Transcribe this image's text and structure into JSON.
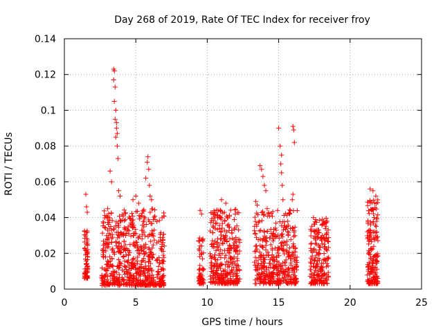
{
  "chart_data": {
    "type": "scatter",
    "title": "Day 268 of 2019, Rate Of TEC Index for receiver froy",
    "xlabel": "GPS time / hours",
    "ylabel": "ROTI / TECUs",
    "xlim": [
      0,
      25
    ],
    "ylim": [
      0,
      0.14
    ],
    "grid": true,
    "marker": "+",
    "colors": {
      "points": "#ff0000",
      "grid": "#a0a0a0",
      "axes": "#000000"
    },
    "x_ticks": [
      {
        "value": 0,
        "label": "0"
      },
      {
        "value": 5,
        "label": "5"
      },
      {
        "value": 10,
        "label": "10"
      },
      {
        "value": 15,
        "label": "15"
      },
      {
        "value": 20,
        "label": "20"
      },
      {
        "value": 25,
        "label": "25"
      }
    ],
    "y_ticks": [
      {
        "value": 0,
        "label": "0"
      },
      {
        "value": 0.02,
        "label": "0.02"
      },
      {
        "value": 0.04,
        "label": "0.04"
      },
      {
        "value": 0.06,
        "label": "0.06"
      },
      {
        "value": 0.08,
        "label": "0.08"
      },
      {
        "value": 0.1,
        "label": "0.1"
      },
      {
        "value": 0.12,
        "label": "0.12"
      },
      {
        "value": 0.14,
        "label": "0.14"
      }
    ],
    "clusters": [
      {
        "x_start": 1.4,
        "x_end": 1.65,
        "y_min": 0.006,
        "y_max": 0.033,
        "count": 70
      },
      {
        "x_start": 2.6,
        "x_end": 7.0,
        "y_min": 0.002,
        "y_max": 0.045,
        "count": 650
      },
      {
        "x_start": 9.4,
        "x_end": 9.75,
        "y_min": 0.003,
        "y_max": 0.03,
        "count": 60
      },
      {
        "x_start": 10.2,
        "x_end": 12.3,
        "y_min": 0.003,
        "y_max": 0.045,
        "count": 330
      },
      {
        "x_start": 13.3,
        "x_end": 16.3,
        "y_min": 0.003,
        "y_max": 0.045,
        "count": 420
      },
      {
        "x_start": 17.2,
        "x_end": 18.5,
        "y_min": 0.003,
        "y_max": 0.04,
        "count": 210
      },
      {
        "x_start": 21.2,
        "x_end": 21.95,
        "y_min": 0.003,
        "y_max": 0.05,
        "count": 170
      }
    ],
    "outliers": [
      {
        "x": 1.5,
        "y": 0.053
      },
      {
        "x": 1.55,
        "y": 0.046
      },
      {
        "x": 1.6,
        "y": 0.043
      },
      {
        "x": 3.2,
        "y": 0.066
      },
      {
        "x": 3.3,
        "y": 0.06
      },
      {
        "x": 3.45,
        "y": 0.123
      },
      {
        "x": 3.45,
        "y": 0.117
      },
      {
        "x": 3.5,
        "y": 0.122
      },
      {
        "x": 3.55,
        "y": 0.113
      },
      {
        "x": 3.5,
        "y": 0.105
      },
      {
        "x": 3.6,
        "y": 0.1
      },
      {
        "x": 3.55,
        "y": 0.095
      },
      {
        "x": 3.65,
        "y": 0.09
      },
      {
        "x": 3.6,
        "y": 0.085
      },
      {
        "x": 3.7,
        "y": 0.08
      },
      {
        "x": 3.75,
        "y": 0.073
      },
      {
        "x": 3.65,
        "y": 0.093
      },
      {
        "x": 3.7,
        "y": 0.087
      },
      {
        "x": 3.8,
        "y": 0.055
      },
      {
        "x": 3.9,
        "y": 0.052
      },
      {
        "x": 4.8,
        "y": 0.05
      },
      {
        "x": 5.0,
        "y": 0.052
      },
      {
        "x": 5.2,
        "y": 0.048
      },
      {
        "x": 5.7,
        "y": 0.062
      },
      {
        "x": 5.8,
        "y": 0.071
      },
      {
        "x": 5.85,
        "y": 0.074
      },
      {
        "x": 5.9,
        "y": 0.067
      },
      {
        "x": 5.95,
        "y": 0.058
      },
      {
        "x": 6.0,
        "y": 0.052
      },
      {
        "x": 6.1,
        "y": 0.05
      },
      {
        "x": 9.5,
        "y": 0.044
      },
      {
        "x": 9.6,
        "y": 0.042
      },
      {
        "x": 11.0,
        "y": 0.05
      },
      {
        "x": 11.3,
        "y": 0.048
      },
      {
        "x": 13.4,
        "y": 0.049
      },
      {
        "x": 13.5,
        "y": 0.047
      },
      {
        "x": 13.7,
        "y": 0.069
      },
      {
        "x": 13.8,
        "y": 0.067
      },
      {
        "x": 13.9,
        "y": 0.063
      },
      {
        "x": 14.0,
        "y": 0.058
      },
      {
        "x": 14.1,
        "y": 0.055
      },
      {
        "x": 15.0,
        "y": 0.09
      },
      {
        "x": 15.1,
        "y": 0.08
      },
      {
        "x": 15.2,
        "y": 0.075
      },
      {
        "x": 15.15,
        "y": 0.07
      },
      {
        "x": 15.2,
        "y": 0.065
      },
      {
        "x": 15.25,
        "y": 0.058
      },
      {
        "x": 15.3,
        "y": 0.05
      },
      {
        "x": 16.0,
        "y": 0.091
      },
      {
        "x": 16.05,
        "y": 0.089
      },
      {
        "x": 16.1,
        "y": 0.082
      },
      {
        "x": 16.0,
        "y": 0.053
      },
      {
        "x": 15.95,
        "y": 0.05
      },
      {
        "x": 21.4,
        "y": 0.056
      },
      {
        "x": 21.6,
        "y": 0.055
      },
      {
        "x": 21.8,
        "y": 0.052
      }
    ]
  }
}
